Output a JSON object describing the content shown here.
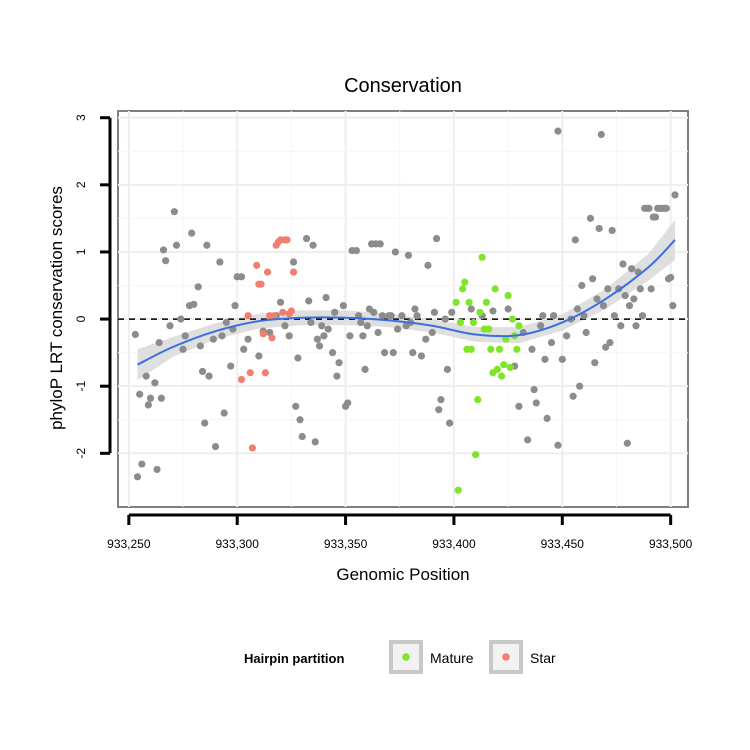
{
  "chart_data": {
    "type": "scatter",
    "title": "Conservation",
    "xlabel": "Genomic Position",
    "ylabel": "phyloP LRT conservation scores",
    "xlim": [
      933245,
      933508
    ],
    "ylim": [
      -2.8,
      3.1
    ],
    "x_ticks": [
      933250,
      933300,
      933350,
      933400,
      933450,
      933500
    ],
    "x_tick_labels": [
      "933,250",
      "933,300",
      "933,350",
      "933,400",
      "933,450",
      "933,500"
    ],
    "y_ticks": [
      -2,
      -1,
      0,
      1,
      2,
      3
    ],
    "y_tick_labels": [
      "-2",
      "-1",
      "0",
      "1",
      "2",
      "3"
    ],
    "reference_line": {
      "y": 0,
      "style": "dashed"
    },
    "legend": {
      "title": "Hairpin partition",
      "position": "bottom",
      "entries": [
        {
          "label": "Mature",
          "color": "#7fe52a"
        },
        {
          "label": "Star",
          "color": "#f07f70"
        }
      ]
    },
    "colors": {
      "other": "#8c8c8c",
      "mature": "#7fe52a",
      "star": "#f07f70",
      "smooth": "#3a6fe0",
      "band": "#d9d9d9"
    },
    "smooth_curve": {
      "x": [
        933254,
        933270,
        933290,
        933310,
        933330,
        933350,
        933370,
        933390,
        933410,
        933430,
        933450,
        933470,
        933490,
        933502
      ],
      "y": [
        -0.68,
        -0.42,
        -0.18,
        -0.03,
        0.02,
        0.02,
        -0.02,
        -0.1,
        -0.23,
        -0.24,
        -0.05,
        0.3,
        0.78,
        1.18
      ],
      "upper": [
        -0.45,
        -0.27,
        -0.06,
        0.08,
        0.13,
        0.13,
        0.08,
        0.0,
        -0.12,
        -0.12,
        0.07,
        0.45,
        0.98,
        1.48
      ],
      "lower": [
        -0.91,
        -0.57,
        -0.3,
        -0.14,
        -0.09,
        -0.09,
        -0.12,
        -0.2,
        -0.34,
        -0.36,
        -0.17,
        0.15,
        0.58,
        0.88
      ]
    },
    "series": [
      {
        "name": "Other",
        "color": "#8c8c8c",
        "points": [
          [
            933253,
            -0.23
          ],
          [
            933254,
            -2.35
          ],
          [
            933256,
            -2.16
          ],
          [
            933255,
            -1.12
          ],
          [
            933258,
            -0.85
          ],
          [
            933259,
            -1.28
          ],
          [
            933260,
            -1.18
          ],
          [
            933262,
            -0.95
          ],
          [
            933263,
            -2.24
          ],
          [
            933264,
            -0.35
          ],
          [
            933265,
            -1.18
          ],
          [
            933266,
            1.03
          ],
          [
            933267,
            0.87
          ],
          [
            933269,
            -0.1
          ],
          [
            933271,
            1.6
          ],
          [
            933272,
            1.1
          ],
          [
            933274,
            0.0
          ],
          [
            933275,
            -0.45
          ],
          [
            933276,
            -0.25
          ],
          [
            933278,
            0.2
          ],
          [
            933279,
            1.28
          ],
          [
            933280,
            0.22
          ],
          [
            933282,
            0.48
          ],
          [
            933283,
            -0.4
          ],
          [
            933284,
            -0.78
          ],
          [
            933285,
            -1.55
          ],
          [
            933286,
            1.1
          ],
          [
            933287,
            -0.85
          ],
          [
            933289,
            -0.3
          ],
          [
            933290,
            -1.9
          ],
          [
            933292,
            0.85
          ],
          [
            933293,
            -0.25
          ],
          [
            933294,
            -1.4
          ],
          [
            933295,
            -0.05
          ],
          [
            933297,
            -0.7
          ],
          [
            933298,
            -0.15
          ],
          [
            933299,
            0.2
          ],
          [
            933300,
            0.63
          ],
          [
            933302,
            0.63
          ],
          [
            933303,
            -0.45
          ],
          [
            933305,
            -0.3
          ],
          [
            933310,
            -0.55
          ],
          [
            933312,
            -0.18
          ],
          [
            933315,
            -0.2
          ],
          [
            933318,
            0.05
          ],
          [
            933320,
            0.25
          ],
          [
            933322,
            -0.1
          ],
          [
            933324,
            -0.25
          ],
          [
            933326,
            0.85
          ],
          [
            933327,
            -1.3
          ],
          [
            933328,
            -0.58
          ],
          [
            933329,
            -1.5
          ],
          [
            933330,
            -1.75
          ],
          [
            933332,
            1.2
          ],
          [
            933333,
            0.27
          ],
          [
            933334,
            -0.05
          ],
          [
            933335,
            1.1
          ],
          [
            933336,
            -1.83
          ],
          [
            933337,
            -0.3
          ],
          [
            933338,
            -0.4
          ],
          [
            933339,
            -0.1
          ],
          [
            933340,
            -0.25
          ],
          [
            933341,
            0.32
          ],
          [
            933342,
            -0.15
          ],
          [
            933344,
            -0.5
          ],
          [
            933345,
            0.1
          ],
          [
            933346,
            -0.85
          ],
          [
            933347,
            -0.65
          ],
          [
            933349,
            0.2
          ],
          [
            933350,
            -1.3
          ],
          [
            933351,
            -1.25
          ],
          [
            933352,
            -0.25
          ],
          [
            933353,
            1.02
          ],
          [
            933355,
            1.02
          ],
          [
            933356,
            0.05
          ],
          [
            933357,
            -0.05
          ],
          [
            933358,
            -0.25
          ],
          [
            933359,
            -0.75
          ],
          [
            933360,
            -0.1
          ],
          [
            933361,
            0.15
          ],
          [
            933362,
            1.12
          ],
          [
            933363,
            0.1
          ],
          [
            933364,
            1.12
          ],
          [
            933365,
            -0.2
          ],
          [
            933366,
            1.12
          ],
          [
            933367,
            0.05
          ],
          [
            933368,
            -0.5
          ],
          [
            933370,
            0.05
          ],
          [
            933371,
            0.05
          ],
          [
            933372,
            -0.5
          ],
          [
            933373,
            1.0
          ],
          [
            933374,
            -0.15
          ],
          [
            933376,
            0.05
          ],
          [
            933378,
            -0.1
          ],
          [
            933379,
            0.95
          ],
          [
            933380,
            -0.05
          ],
          [
            933381,
            -0.5
          ],
          [
            933382,
            0.15
          ],
          [
            933383,
            0.05
          ],
          [
            933385,
            -0.55
          ],
          [
            933387,
            -0.3
          ],
          [
            933388,
            0.8
          ],
          [
            933390,
            -0.2
          ],
          [
            933391,
            0.1
          ],
          [
            933392,
            1.2
          ],
          [
            933393,
            -1.35
          ],
          [
            933394,
            -1.2
          ],
          [
            933396,
            0.0
          ],
          [
            933397,
            -0.75
          ],
          [
            933398,
            -1.55
          ],
          [
            933399,
            0.1
          ],
          [
            933408,
            0.15
          ],
          [
            933413,
            0.05
          ],
          [
            933418,
            0.12
          ],
          [
            933425,
            0.15
          ],
          [
            933428,
            -0.7
          ],
          [
            933430,
            -1.3
          ],
          [
            933432,
            -0.2
          ],
          [
            933434,
            -1.8
          ],
          [
            933436,
            -0.45
          ],
          [
            933437,
            -1.05
          ],
          [
            933438,
            -1.25
          ],
          [
            933440,
            -0.1
          ],
          [
            933441,
            0.05
          ],
          [
            933442,
            -0.6
          ],
          [
            933443,
            -1.48
          ],
          [
            933445,
            -0.35
          ],
          [
            933446,
            0.05
          ],
          [
            933448,
            2.8
          ],
          [
            933448,
            -1.88
          ],
          [
            933450,
            -0.6
          ],
          [
            933452,
            -0.25
          ],
          [
            933454,
            0.0
          ],
          [
            933455,
            -1.15
          ],
          [
            933456,
            1.18
          ],
          [
            933457,
            0.15
          ],
          [
            933458,
            -1.0
          ],
          [
            933459,
            0.5
          ],
          [
            933460,
            0.05
          ],
          [
            933461,
            -0.2
          ],
          [
            933463,
            1.5
          ],
          [
            933464,
            0.6
          ],
          [
            933465,
            -0.65
          ],
          [
            933466,
            0.3
          ],
          [
            933467,
            1.35
          ],
          [
            933468,
            2.75
          ],
          [
            933469,
            0.2
          ],
          [
            933470,
            -0.42
          ],
          [
            933471,
            0.45
          ],
          [
            933472,
            -0.35
          ],
          [
            933473,
            1.32
          ],
          [
            933474,
            0.05
          ],
          [
            933476,
            0.45
          ],
          [
            933477,
            -0.1
          ],
          [
            933478,
            0.82
          ],
          [
            933479,
            0.35
          ],
          [
            933480,
            -1.85
          ],
          [
            933481,
            0.2
          ],
          [
            933482,
            0.75
          ],
          [
            933483,
            0.3
          ],
          [
            933484,
            -0.1
          ],
          [
            933485,
            0.7
          ],
          [
            933486,
            0.45
          ],
          [
            933487,
            0.05
          ],
          [
            933488,
            1.65
          ],
          [
            933489,
            1.65
          ],
          [
            933490,
            1.65
          ],
          [
            933491,
            0.45
          ],
          [
            933492,
            1.52
          ],
          [
            933493,
            1.52
          ],
          [
            933494,
            1.65
          ],
          [
            933495,
            1.65
          ],
          [
            933496,
            1.65
          ],
          [
            933497,
            1.65
          ],
          [
            933498,
            1.65
          ],
          [
            933499,
            0.6
          ],
          [
            933500,
            0.62
          ],
          [
            933501,
            0.2
          ],
          [
            933502,
            1.85
          ]
        ]
      },
      {
        "name": "Mature",
        "color": "#7fe52a",
        "points": [
          [
            933401,
            0.25
          ],
          [
            933402,
            -2.55
          ],
          [
            933403,
            -0.05
          ],
          [
            933404,
            0.45
          ],
          [
            933405,
            0.55
          ],
          [
            933406,
            -0.45
          ],
          [
            933407,
            0.25
          ],
          [
            933408,
            -0.45
          ],
          [
            933409,
            -0.05
          ],
          [
            933410,
            -2.02
          ],
          [
            933411,
            -1.2
          ],
          [
            933412,
            0.1
          ],
          [
            933413,
            0.92
          ],
          [
            933414,
            -0.15
          ],
          [
            933415,
            0.25
          ],
          [
            933416,
            -0.15
          ],
          [
            933417,
            -0.45
          ],
          [
            933418,
            -0.8
          ],
          [
            933419,
            0.45
          ],
          [
            933420,
            -0.75
          ],
          [
            933421,
            -0.45
          ],
          [
            933422,
            -0.85
          ],
          [
            933423,
            -0.68
          ],
          [
            933424,
            -0.3
          ],
          [
            933425,
            0.35
          ],
          [
            933426,
            -0.72
          ],
          [
            933427,
            0.0
          ],
          [
            933428,
            -0.25
          ],
          [
            933429,
            -0.45
          ],
          [
            933430,
            -0.1
          ]
        ]
      },
      {
        "name": "Star",
        "color": "#f07f70",
        "points": [
          [
            933302,
            -0.9
          ],
          [
            933305,
            0.05
          ],
          [
            933306,
            -0.8
          ],
          [
            933307,
            -1.92
          ],
          [
            933309,
            0.8
          ],
          [
            933310,
            0.52
          ],
          [
            933311,
            0.52
          ],
          [
            933312,
            -0.22
          ],
          [
            933313,
            -0.8
          ],
          [
            933314,
            0.7
          ],
          [
            933315,
            0.05
          ],
          [
            933316,
            -0.28
          ],
          [
            933317,
            0.05
          ],
          [
            933318,
            1.1
          ],
          [
            933319,
            1.15
          ],
          [
            933320,
            1.18
          ],
          [
            933321,
            0.1
          ],
          [
            933322,
            1.18
          ],
          [
            933323,
            1.18
          ],
          [
            933324,
            0.08
          ],
          [
            933325,
            0.12
          ],
          [
            933326,
            0.7
          ]
        ]
      }
    ]
  }
}
